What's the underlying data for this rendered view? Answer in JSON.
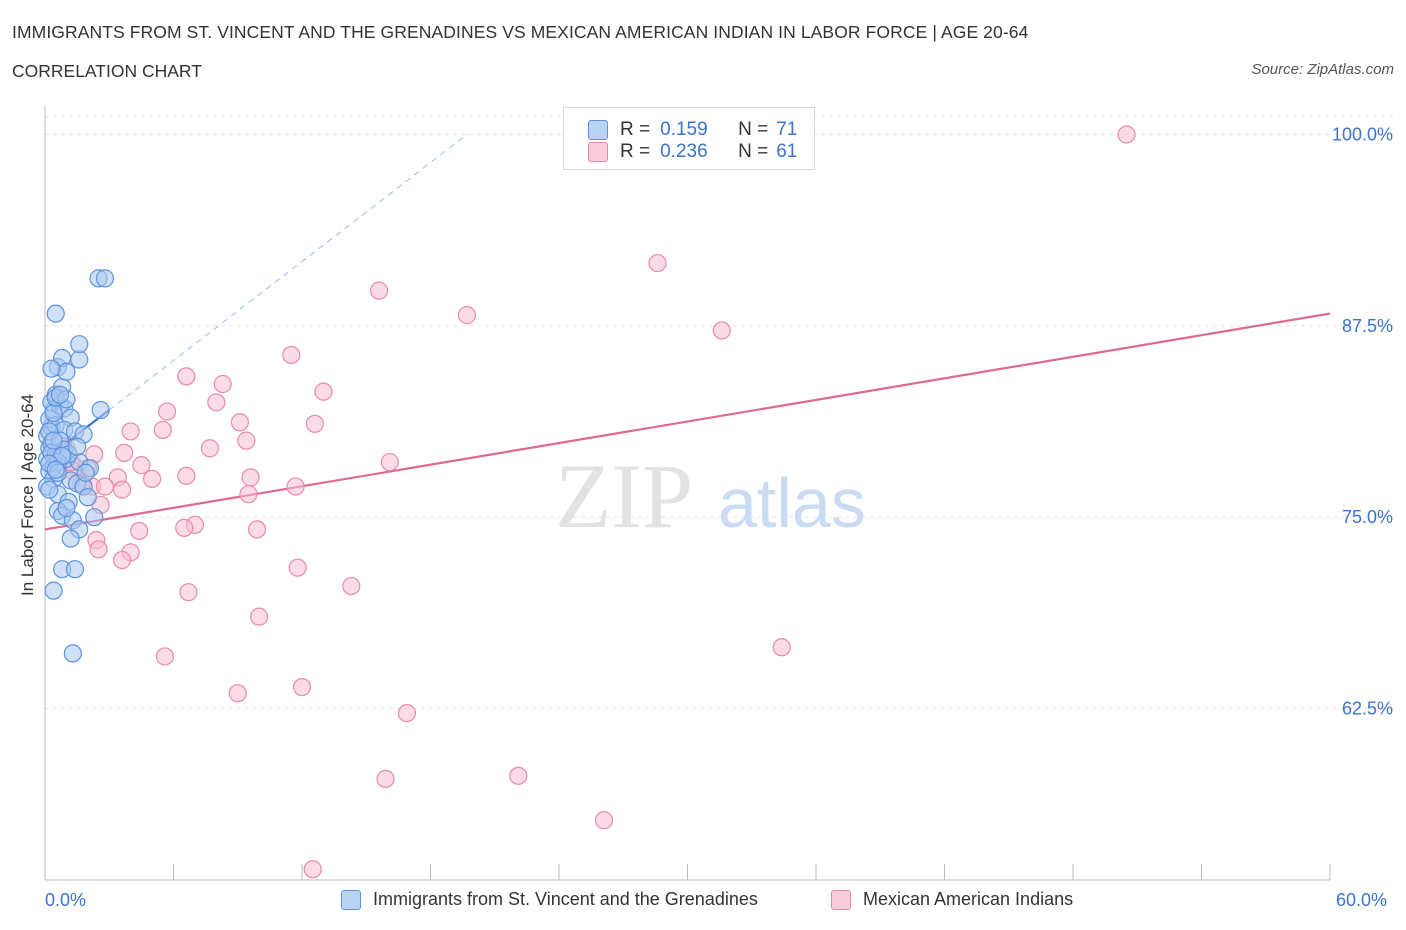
{
  "header": {
    "title": "IMMIGRANTS FROM ST. VINCENT AND THE GRENADINES VS MEXICAN AMERICAN INDIAN IN LABOR FORCE | AGE 20-64",
    "subtitle": "CORRELATION CHART",
    "source": "Source: ZipAtlas.com"
  },
  "stats_legend": {
    "r_label": "R =",
    "n_label": "N =",
    "blue": {
      "r": "0.159",
      "n": "71"
    },
    "pink": {
      "r": "0.236",
      "n": "61"
    }
  },
  "watermark": {
    "zip": "ZIP",
    "atlas": "atlas"
  },
  "colors": {
    "blue_fill": "#a9c8f0",
    "blue_stroke": "#5b93dd",
    "blue_line": "#3a74d0",
    "pink_fill": "#f7c0d2",
    "pink_stroke": "#e88aa9",
    "pink_line": "#e0688f",
    "grid": "#e3e3e3",
    "axis_text": "#3a74d0"
  },
  "chart_data": {
    "type": "scatter",
    "title": "IMMIGRANTS FROM ST. VINCENT AND THE GRENADINES VS MEXICAN AMERICAN INDIAN IN LABOR FORCE | AGE 20-64",
    "xlabel": "",
    "ylabel": "In Labor Force | Age 20-64",
    "xlim": [
      0,
      60
    ],
    "ylim": [
      50,
      100
    ],
    "x_tick_labels": [
      "0.0%",
      "60.0%"
    ],
    "y_tick_labels": [
      "100.0%",
      "87.5%",
      "75.0%",
      "62.5%"
    ],
    "y_ticks": [
      100,
      87.5,
      75,
      62.5
    ],
    "grid": true,
    "legend_position": "bottom",
    "series": [
      {
        "name": "Immigrants from St. Vincent and the Grenadines",
        "color": "#a9c8f0",
        "r": 0.159,
        "n": 71,
        "trend": {
          "x": [
            0,
            3
          ],
          "y": [
            78.8,
            82.0
          ]
        },
        "trend_extension": {
          "x": [
            3,
            19.7
          ],
          "y": [
            82.0,
            100.0
          ]
        },
        "points": [
          [
            0.1,
            78.8
          ],
          [
            0.2,
            79.5
          ],
          [
            0.1,
            80.3
          ],
          [
            0.3,
            80.9
          ],
          [
            0.2,
            81.4
          ],
          [
            0.4,
            82.0
          ],
          [
            0.3,
            82.5
          ],
          [
            0.5,
            83.0
          ],
          [
            0.2,
            78.0
          ],
          [
            0.4,
            77.5
          ],
          [
            0.6,
            79.0
          ],
          [
            0.1,
            77.0
          ],
          [
            0.3,
            79.8
          ],
          [
            0.5,
            81.0
          ],
          [
            0.7,
            82.3
          ],
          [
            0.8,
            83.5
          ],
          [
            0.6,
            84.8
          ],
          [
            0.8,
            85.4
          ],
          [
            1.0,
            84.5
          ],
          [
            1.6,
            85.3
          ],
          [
            1.6,
            86.3
          ],
          [
            0.5,
            88.3
          ],
          [
            2.5,
            90.6
          ],
          [
            2.8,
            90.6
          ],
          [
            0.3,
            84.7
          ],
          [
            0.9,
            82.1
          ],
          [
            1.2,
            81.5
          ],
          [
            2.6,
            82.0
          ],
          [
            0.9,
            80.7
          ],
          [
            1.4,
            80.6
          ],
          [
            1.8,
            80.4
          ],
          [
            0.5,
            79.1
          ],
          [
            1.0,
            78.8
          ],
          [
            1.6,
            78.6
          ],
          [
            2.1,
            78.2
          ],
          [
            0.4,
            78.3
          ],
          [
            1.2,
            77.4
          ],
          [
            1.5,
            77.2
          ],
          [
            1.8,
            77.0
          ],
          [
            0.6,
            76.5
          ],
          [
            1.1,
            76.0
          ],
          [
            2.0,
            76.3
          ],
          [
            0.6,
            75.4
          ],
          [
            0.8,
            75.1
          ],
          [
            1.3,
            74.8
          ],
          [
            1.6,
            74.2
          ],
          [
            2.3,
            75.0
          ],
          [
            1.2,
            73.6
          ],
          [
            0.8,
            71.6
          ],
          [
            1.4,
            71.6
          ],
          [
            0.4,
            70.2
          ],
          [
            1.3,
            66.1
          ],
          [
            0.2,
            80.6
          ],
          [
            0.4,
            81.8
          ],
          [
            0.5,
            82.8
          ],
          [
            0.7,
            80.0
          ],
          [
            0.9,
            79.4
          ],
          [
            1.1,
            79.1
          ],
          [
            0.3,
            79.2
          ],
          [
            0.6,
            78.6
          ],
          [
            0.8,
            79.0
          ],
          [
            0.2,
            78.5
          ],
          [
            1.5,
            79.6
          ],
          [
            1.0,
            82.7
          ],
          [
            0.7,
            83.0
          ],
          [
            0.4,
            80.0
          ],
          [
            0.6,
            77.9
          ],
          [
            1.9,
            77.9
          ],
          [
            0.2,
            76.8
          ],
          [
            1.0,
            75.6
          ],
          [
            0.5,
            78.1
          ]
        ]
      },
      {
        "name": "Mexican American Indians",
        "color": "#f7c0d2",
        "r": 0.236,
        "n": 61,
        "trend": {
          "x": [
            0,
            60
          ],
          "y": [
            74.2,
            88.3
          ]
        },
        "points": [
          [
            50.5,
            100.0
          ],
          [
            28.6,
            91.6
          ],
          [
            15.6,
            89.8
          ],
          [
            19.7,
            88.2
          ],
          [
            31.6,
            87.2
          ],
          [
            11.5,
            85.6
          ],
          [
            6.6,
            84.2
          ],
          [
            8.3,
            83.7
          ],
          [
            13.0,
            83.2
          ],
          [
            8.0,
            82.5
          ],
          [
            5.7,
            81.9
          ],
          [
            9.1,
            81.2
          ],
          [
            12.6,
            81.1
          ],
          [
            4.0,
            80.6
          ],
          [
            5.5,
            80.7
          ],
          [
            9.4,
            80.0
          ],
          [
            7.7,
            79.5
          ],
          [
            3.7,
            79.2
          ],
          [
            2.3,
            79.1
          ],
          [
            16.1,
            78.6
          ],
          [
            4.5,
            78.4
          ],
          [
            2.0,
            78.2
          ],
          [
            1.4,
            78.3
          ],
          [
            6.6,
            77.7
          ],
          [
            9.6,
            77.6
          ],
          [
            3.4,
            77.6
          ],
          [
            5.0,
            77.5
          ],
          [
            2.2,
            77.0
          ],
          [
            2.8,
            77.0
          ],
          [
            11.7,
            77.0
          ],
          [
            3.6,
            76.8
          ],
          [
            9.5,
            76.5
          ],
          [
            2.6,
            75.8
          ],
          [
            7.0,
            74.5
          ],
          [
            6.5,
            74.3
          ],
          [
            9.9,
            74.2
          ],
          [
            4.4,
            74.1
          ],
          [
            2.4,
            73.5
          ],
          [
            2.5,
            72.9
          ],
          [
            4.0,
            72.7
          ],
          [
            3.6,
            72.2
          ],
          [
            11.8,
            71.7
          ],
          [
            14.3,
            70.5
          ],
          [
            6.7,
            70.1
          ],
          [
            10.0,
            68.5
          ],
          [
            34.4,
            66.5
          ],
          [
            5.6,
            65.9
          ],
          [
            12.0,
            63.9
          ],
          [
            9.0,
            63.5
          ],
          [
            16.9,
            62.2
          ],
          [
            22.1,
            58.1
          ],
          [
            15.9,
            57.9
          ],
          [
            26.1,
            55.2
          ],
          [
            12.5,
            52.0
          ],
          [
            0.8,
            78.9
          ],
          [
            1.0,
            79.5
          ],
          [
            1.3,
            78.0
          ],
          [
            0.6,
            79.0
          ],
          [
            1.7,
            77.1
          ],
          [
            1.2,
            78.6
          ],
          [
            0.5,
            78.6
          ]
        ]
      }
    ]
  },
  "bottom_legend": {
    "blue_label": "Immigrants from St. Vincent and the Grenadines",
    "pink_label": "Mexican American Indians"
  }
}
